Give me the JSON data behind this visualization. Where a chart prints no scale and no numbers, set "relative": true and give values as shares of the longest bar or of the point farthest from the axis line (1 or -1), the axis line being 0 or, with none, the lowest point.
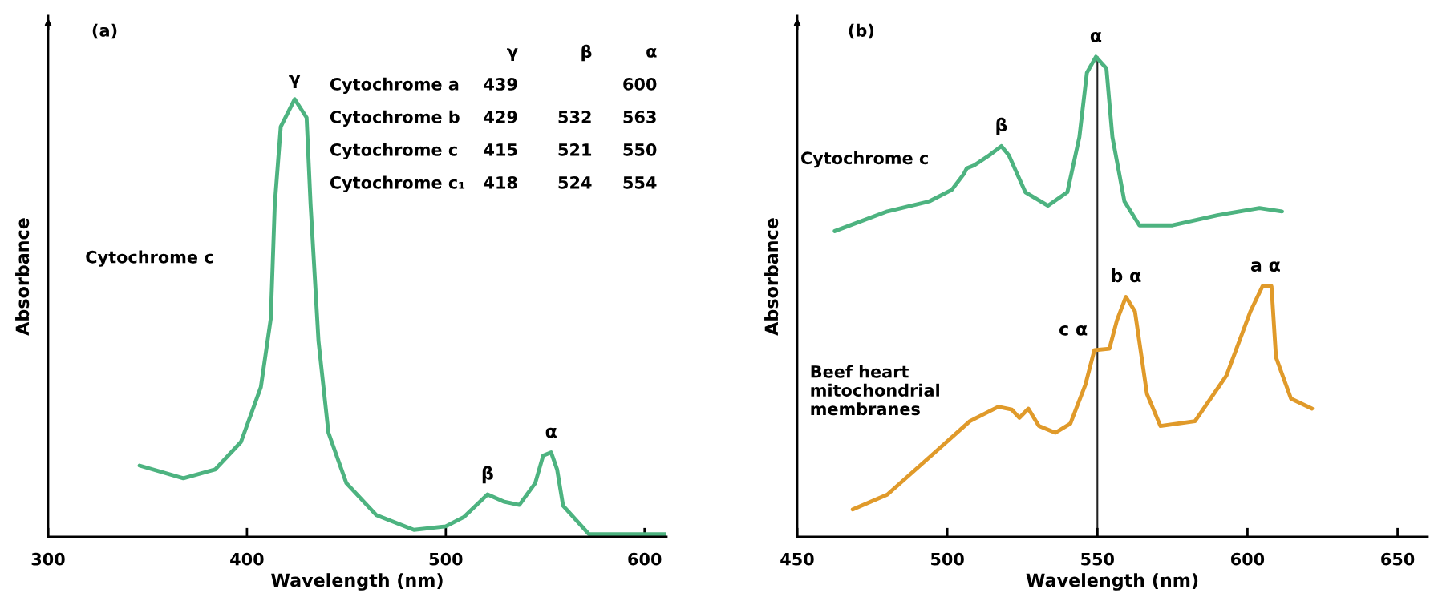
{
  "chart_data": [
    {
      "type": "line",
      "title": "(a)",
      "xlabel": "Wavelength (nm)",
      "ylabel": "Absorbance",
      "relative": true,
      "xlim": [
        300,
        611
      ],
      "xticks": [
        300,
        400,
        500,
        600
      ],
      "grid": false,
      "series": [
        {
          "name": "Cytochrome c",
          "color": "#4db380",
          "x": [
            346,
            368,
            384,
            397,
            407,
            412,
            414,
            417,
            424,
            430,
            432,
            436,
            441,
            450,
            465,
            484,
            500,
            509,
            521,
            529,
            537,
            545,
            549,
            553,
            556,
            559,
            572,
            611
          ],
          "values": [
            0.163,
            0.134,
            0.154,
            0.217,
            0.342,
            0.499,
            0.76,
            0.937,
            1.0,
            0.958,
            0.76,
            0.447,
            0.238,
            0.123,
            0.05,
            0.016,
            0.024,
            0.045,
            0.097,
            0.081,
            0.073,
            0.123,
            0.186,
            0.193,
            0.154,
            0.071,
            0.006,
            0.006
          ]
        }
      ],
      "annotations": [
        {
          "text": "γ",
          "x": 424,
          "y": 1.0
        },
        {
          "text": "β",
          "x": 521,
          "y": 0.097
        },
        {
          "text": "α",
          "x": 553,
          "y": 0.193
        },
        null,
        "γ",
        "β",
        "α",
        "Cytochrome a",
        "439",
        null,
        "600",
        "Cytochrome b",
        "429",
        "532",
        "563",
        "Cytochrome c",
        "415",
        "521",
        "550",
        "Cytochrome c₁",
        "418",
        "524",
        "554"
      ]
    },
    {
      "type": "line",
      "title": "(b)",
      "xlabel": "Wavelength (nm)",
      "ylabel": "Absorbance",
      "relative": true,
      "xlim": [
        450,
        660
      ],
      "xticks": [
        450,
        500,
        550,
        600,
        650
      ],
      "grid": false,
      "series": [
        {
          "name": "Cytochrome c",
          "color": "#4db380",
          "x": [
            462.5,
            480,
            494,
            501.5,
            505.5,
            506.5,
            509,
            514,
            518,
            520.5,
            526,
            533.5,
            540,
            544,
            546.5,
            549.5,
            553,
            555,
            559,
            564,
            575,
            590,
            604,
            611.5
          ],
          "values": [
            0.637,
            0.678,
            0.699,
            0.723,
            0.756,
            0.768,
            0.774,
            0.795,
            0.814,
            0.795,
            0.718,
            0.69,
            0.718,
            0.833,
            0.967,
            1.0,
            0.976,
            0.833,
            0.699,
            0.649,
            0.649,
            0.67,
            0.685,
            0.678
          ]
        },
        {
          "name": "Beef heart\nmitochondrial\nmembranes",
          "color": "#e09a2a",
          "x": [
            468.5,
            480,
            495.5,
            507.5,
            517,
            521.5,
            524,
            527,
            530.5,
            536,
            541,
            546,
            549,
            554,
            556.5,
            559.5,
            562.5,
            566.5,
            571,
            582.5,
            593,
            601,
            605,
            608,
            609.5,
            614.5,
            621.5
          ],
          "values": [
            0.057,
            0.088,
            0.174,
            0.241,
            0.271,
            0.265,
            0.248,
            0.267,
            0.231,
            0.217,
            0.236,
            0.317,
            0.389,
            0.392,
            0.451,
            0.5,
            0.47,
            0.298,
            0.231,
            0.241,
            0.336,
            0.47,
            0.522,
            0.522,
            0.374,
            0.288,
            0.267
          ]
        }
      ],
      "ref_lines": [
        {
          "axis": "x",
          "value": 550,
          "color": "#222222"
        }
      ],
      "annotations": [
        {
          "text": "α",
          "x": 549.5,
          "y": 1.0
        },
        {
          "text": "β",
          "x": 518,
          "y": 0.814
        },
        {
          "text": "c α",
          "x": 549,
          "y": 0.389
        },
        {
          "text": "b α",
          "x": 559.5,
          "y": 0.5
        },
        {
          "text": "a α",
          "x": 606,
          "y": 0.522
        }
      ]
    }
  ]
}
